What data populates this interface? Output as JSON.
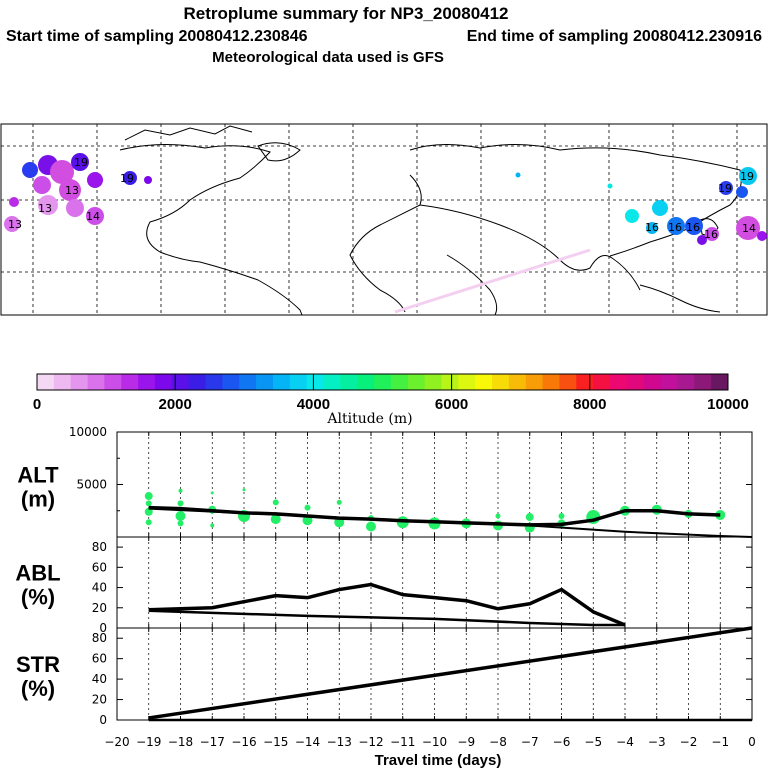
{
  "header": {
    "title": "Retroplume summary for NP3_20080412",
    "start_label": "Start time of sampling 20080412.230846",
    "end_label": "End time of sampling 20080412.230916",
    "met_label": "Meteorological data used is GFS"
  },
  "colorbar": {
    "xlabel": "Altitude (m)",
    "ticks": [
      "0",
      "2000",
      "4000",
      "6000",
      "8000",
      "10000"
    ],
    "colors": [
      "#f4d8f4",
      "#eeb8f0",
      "#e496ee",
      "#da72ec",
      "#cc4ee8",
      "#b82ce8",
      "#9a14ec",
      "#7c08ec",
      "#5a10e8",
      "#3a1ee6",
      "#2838ea",
      "#1c56f0",
      "#1076f2",
      "#0896f2",
      "#04b4f4",
      "#08d0f2",
      "#08e8e8",
      "#04f0c4",
      "#04f0a0",
      "#08f07c",
      "#20f05a",
      "#44f040",
      "#6af02c",
      "#90f020",
      "#b8f418",
      "#dcf810",
      "#f8f808",
      "#f8dc08",
      "#f8bc08",
      "#f89c08",
      "#f87808",
      "#f85010",
      "#f82020",
      "#f41040",
      "#ec0870",
      "#e0087c",
      "#d00890",
      "#c0109c",
      "#a81890",
      "#8c1878",
      "#681860"
    ]
  },
  "map": {
    "cluster_labels": [
      "13",
      "13",
      "13",
      "14",
      "19",
      "19",
      "19",
      "19",
      "16",
      "16",
      "16",
      "16",
      "14"
    ],
    "accent_colors": {
      "magenta": "#d24ee0",
      "blue": "#2a3cf0",
      "purple": "#7a10e8",
      "cyan": "#08c8f0",
      "lightcyan": "#04e8e0",
      "pink": "#f4d0f0"
    }
  },
  "chart_data": [
    {
      "type": "scatter",
      "panel": "ALT",
      "ylabel_top": "ALT",
      "ylabel_bottom": "(m)",
      "ylim": [
        0,
        10000
      ],
      "yticks": [
        "10000",
        "5000"
      ],
      "xlim": [
        -20,
        0
      ],
      "line_x": [
        -19,
        -18,
        -17,
        -16,
        -15,
        -14,
        -13,
        -12,
        -11,
        -10,
        -9,
        -8,
        -7,
        -6,
        -5,
        -4,
        -3,
        -2,
        -1
      ],
      "line_y": [
        2800,
        2700,
        2500,
        2300,
        2200,
        2000,
        1800,
        1700,
        1550,
        1450,
        1350,
        1250,
        1150,
        1200,
        1600,
        2500,
        2500,
        2200,
        2100
      ],
      "envelope_x": [
        -19,
        -14,
        -10,
        -7,
        -4,
        -1,
        0
      ],
      "envelope_y": [
        2700,
        2000,
        1400,
        1100,
        500,
        100,
        0
      ],
      "dot_color": "#22ee66",
      "points": [
        {
          "x": -19,
          "y": 3900,
          "size": 4
        },
        {
          "x": -19,
          "y": 3200,
          "size": 3
        },
        {
          "x": -19,
          "y": 2400,
          "size": 4
        },
        {
          "x": -19,
          "y": 1400,
          "size": 3
        },
        {
          "x": -18,
          "y": 4400,
          "size": 2
        },
        {
          "x": -18,
          "y": 3200,
          "size": 3
        },
        {
          "x": -18,
          "y": 2000,
          "size": 5
        },
        {
          "x": -18,
          "y": 1300,
          "size": 3
        },
        {
          "x": -17,
          "y": 4200,
          "size": 1.5
        },
        {
          "x": -17,
          "y": 2600,
          "size": 4
        },
        {
          "x": -17,
          "y": 1100,
          "size": 2
        },
        {
          "x": -16,
          "y": 4500,
          "size": 1.5
        },
        {
          "x": -16,
          "y": 2000,
          "size": 6
        },
        {
          "x": -15,
          "y": 3300,
          "size": 3
        },
        {
          "x": -15,
          "y": 1700,
          "size": 5
        },
        {
          "x": -14,
          "y": 2800,
          "size": 3
        },
        {
          "x": -14,
          "y": 1600,
          "size": 5
        },
        {
          "x": -13,
          "y": 3300,
          "size": 2.5
        },
        {
          "x": -13,
          "y": 1400,
          "size": 5
        },
        {
          "x": -12,
          "y": 1800,
          "size": 3
        },
        {
          "x": -12,
          "y": 1000,
          "size": 5
        },
        {
          "x": -11,
          "y": 1400,
          "size": 6
        },
        {
          "x": -10,
          "y": 1300,
          "size": 6
        },
        {
          "x": -9,
          "y": 1300,
          "size": 5
        },
        {
          "x": -8,
          "y": 2000,
          "size": 2.5
        },
        {
          "x": -8,
          "y": 1100,
          "size": 5
        },
        {
          "x": -7,
          "y": 1900,
          "size": 4
        },
        {
          "x": -7,
          "y": 900,
          "size": 5
        },
        {
          "x": -6,
          "y": 2000,
          "size": 3
        },
        {
          "x": -6,
          "y": 1300,
          "size": 4
        },
        {
          "x": -5,
          "y": 1900,
          "size": 7
        },
        {
          "x": -4,
          "y": 2500,
          "size": 5
        },
        {
          "x": -3,
          "y": 2600,
          "size": 5
        },
        {
          "x": -2,
          "y": 2200,
          "size": 4
        },
        {
          "x": -1,
          "y": 2100,
          "size": 5
        }
      ]
    },
    {
      "type": "line",
      "panel": "ABL",
      "ylabel_top": "ABL",
      "ylabel_bottom": "(%)",
      "ylim": [
        0,
        90
      ],
      "yticks": [
        "80",
        "60",
        "40",
        "20",
        "0"
      ],
      "xlim": [
        -20,
        0
      ],
      "series": [
        {
          "name": "ABL fraction",
          "x": [
            -19,
            -18,
            -17,
            -16,
            -15,
            -14,
            -13,
            -12,
            -11,
            -10,
            -9,
            -8,
            -7,
            -6,
            -5,
            -4
          ],
          "y": [
            18,
            19,
            20,
            26,
            32,
            30,
            38,
            43,
            33,
            30,
            27,
            19,
            24,
            38,
            16,
            3
          ]
        },
        {
          "name": "ABL envelope",
          "x": [
            -19,
            -17,
            -14,
            -10,
            -7,
            -5,
            -4
          ],
          "y": [
            17,
            15,
            12,
            9,
            5,
            3,
            3
          ]
        }
      ]
    },
    {
      "type": "line",
      "panel": "STR",
      "ylabel_top": "STR",
      "ylabel_bottom": "(%)",
      "ylim": [
        0,
        90
      ],
      "yticks": [
        "80",
        "60",
        "40",
        "20",
        "0"
      ],
      "xlim": [
        -20,
        0
      ],
      "xlabel": "Travel time (days)",
      "xticks": [
        "−20",
        "−19",
        "−18",
        "−17",
        "−16",
        "−15",
        "−14",
        "−13",
        "−12",
        "−11",
        "−10",
        "−9",
        "−8",
        "−7",
        "−6",
        "−5",
        "−4",
        "−3",
        "−2",
        "−1",
        "0"
      ],
      "series": [
        {
          "name": "STR fraction",
          "x": [
            -19,
            0
          ],
          "y": [
            2,
            90
          ]
        },
        {
          "name": "STR base",
          "x": [
            -19,
            0
          ],
          "y": [
            0,
            0
          ]
        }
      ]
    }
  ]
}
